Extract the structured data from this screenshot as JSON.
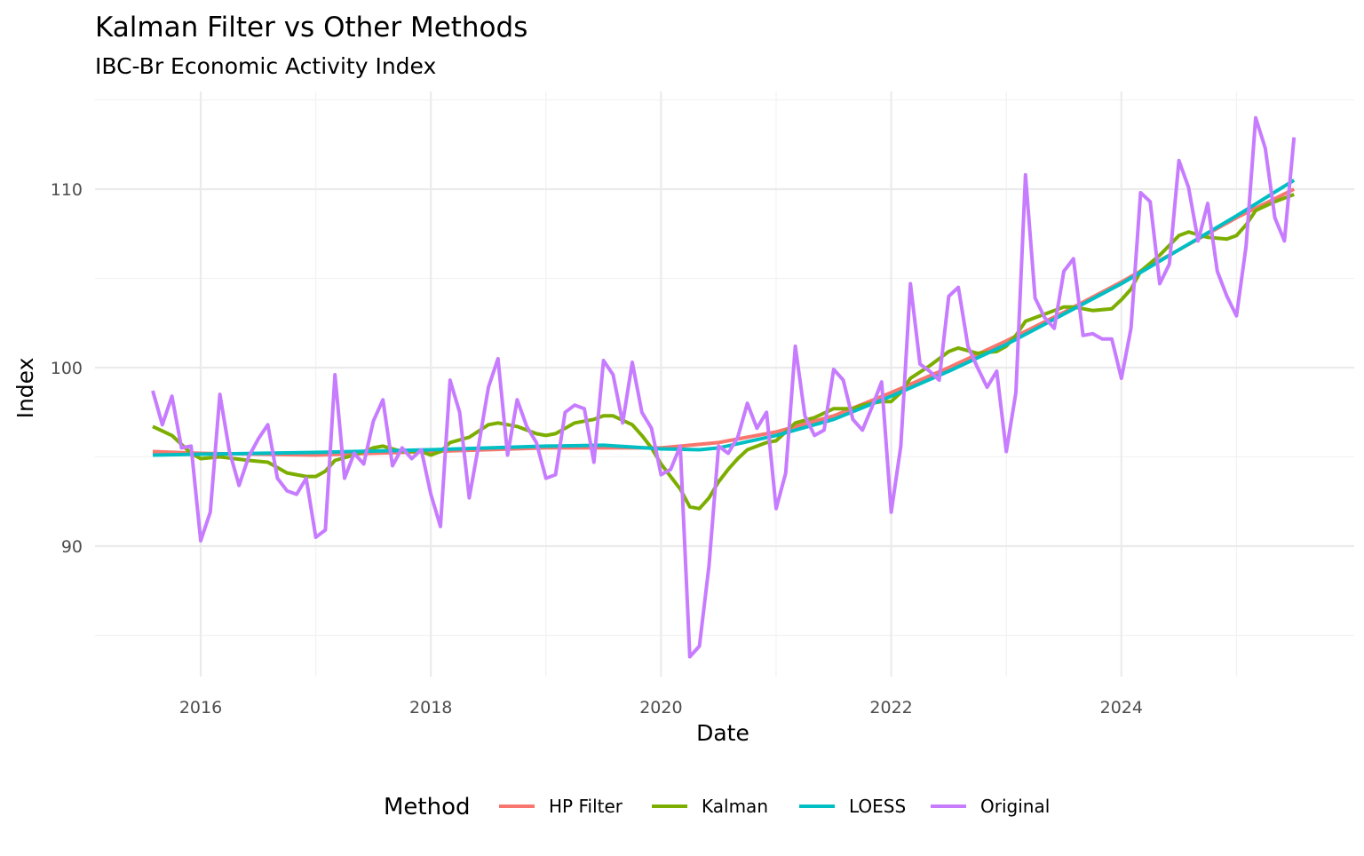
{
  "chart_data": {
    "type": "line",
    "title": "Kalman Filter vs Other Methods",
    "subtitle": "IBC-Br Economic Activity Index",
    "xlabel": "Date",
    "ylabel": "Index",
    "xlim": [
      2015.35,
      2025.8
    ],
    "ylim": [
      82.8,
      115.0
    ],
    "x_ticks": [
      "2016",
      "2018",
      "2020",
      "2022",
      "2024"
    ],
    "y_ticks": [
      "90",
      "100",
      "110"
    ],
    "grid": true,
    "legend": {
      "title": "Method",
      "position": "bottom",
      "entries": [
        "HP Filter",
        "Kalman",
        "LOESS",
        "Original"
      ]
    },
    "colors": {
      "HP Filter": "#F8766D",
      "Kalman": "#7CAE00",
      "LOESS": "#00BFC4",
      "Original": "#C77CFF"
    },
    "series": [
      {
        "name": "Original",
        "start": "2015-08",
        "frequency": "monthly",
        "values": [
          98.7,
          96.8,
          98.4,
          95.5,
          95.6,
          90.3,
          91.9,
          98.5,
          95.3,
          93.4,
          95.0,
          96.0,
          96.8,
          93.8,
          93.1,
          92.9,
          93.8,
          90.5,
          90.9,
          99.6,
          93.8,
          95.2,
          94.6,
          97.0,
          98.2,
          94.5,
          95.5,
          94.9,
          95.4,
          92.9,
          91.1,
          99.3,
          97.5,
          92.7,
          95.7,
          98.9,
          100.5,
          95.1,
          98.2,
          96.7,
          95.8,
          93.8,
          94.0,
          97.5,
          97.9,
          97.7,
          94.7,
          100.4,
          99.6,
          96.9,
          100.3,
          97.5,
          96.6,
          94.0,
          94.3,
          95.6,
          83.8,
          84.4,
          88.9,
          95.6,
          95.2,
          96.1,
          98.0,
          96.6,
          97.5,
          92.1,
          94.1,
          101.2,
          97.3,
          96.2,
          96.5,
          99.9,
          99.3,
          97.1,
          96.5,
          97.8,
          99.2,
          91.9,
          95.6,
          104.7,
          100.2,
          99.8,
          99.3,
          104.0,
          104.5,
          101.2,
          100.0,
          98.9,
          99.8,
          95.3,
          98.6,
          110.8,
          103.9,
          102.8,
          102.2,
          105.4,
          106.1,
          101.8,
          101.9,
          101.6,
          101.6,
          99.4,
          102.2,
          109.8,
          109.3,
          104.7,
          105.8,
          111.6,
          110.1,
          107.1,
          109.2,
          105.4,
          104.0,
          102.9,
          106.8,
          114.0,
          112.3,
          108.4,
          107.1,
          112.9
        ]
      },
      {
        "name": "HP Filter",
        "points": [
          [
            "2015-08",
            95.3
          ],
          [
            "2016-01",
            95.2
          ],
          [
            "2017-01",
            95.1
          ],
          [
            "2018-01",
            95.3
          ],
          [
            "2019-01",
            95.5
          ],
          [
            "2020-01",
            95.5
          ],
          [
            "2020-07",
            95.8
          ],
          [
            "2021-01",
            96.4
          ],
          [
            "2021-07",
            97.3
          ],
          [
            "2022-01",
            98.6
          ],
          [
            "2022-07",
            100.0
          ],
          [
            "2023-01",
            101.5
          ],
          [
            "2023-07",
            103.1
          ],
          [
            "2024-01",
            104.8
          ],
          [
            "2024-07",
            106.6
          ],
          [
            "2025-01",
            108.4
          ],
          [
            "2025-07",
            110.0
          ]
        ]
      },
      {
        "name": "Kalman",
        "points": [
          [
            "2015-08",
            96.7
          ],
          [
            "2015-10",
            96.2
          ],
          [
            "2015-12",
            95.2
          ],
          [
            "2016-01",
            94.9
          ],
          [
            "2016-03",
            95.0
          ],
          [
            "2016-06",
            94.8
          ],
          [
            "2016-08",
            94.7
          ],
          [
            "2016-10",
            94.1
          ],
          [
            "2016-12",
            93.9
          ],
          [
            "2017-01",
            93.9
          ],
          [
            "2017-02",
            94.2
          ],
          [
            "2017-03",
            94.8
          ],
          [
            "2017-05",
            95.1
          ],
          [
            "2017-07",
            95.5
          ],
          [
            "2017-08",
            95.6
          ],
          [
            "2017-10",
            95.3
          ],
          [
            "2017-12",
            95.3
          ],
          [
            "2018-01",
            95.1
          ],
          [
            "2018-02",
            95.3
          ],
          [
            "2018-03",
            95.8
          ],
          [
            "2018-05",
            96.1
          ],
          [
            "2018-07",
            96.8
          ],
          [
            "2018-08",
            96.9
          ],
          [
            "2018-10",
            96.7
          ],
          [
            "2018-12",
            96.3
          ],
          [
            "2019-01",
            96.2
          ],
          [
            "2019-02",
            96.3
          ],
          [
            "2019-04",
            96.9
          ],
          [
            "2019-06",
            97.1
          ],
          [
            "2019-07",
            97.3
          ],
          [
            "2019-08",
            97.3
          ],
          [
            "2019-10",
            96.8
          ],
          [
            "2019-11",
            96.2
          ],
          [
            "2019-12",
            95.5
          ],
          [
            "2020-01",
            94.6
          ],
          [
            "2020-02",
            93.9
          ],
          [
            "2020-03",
            93.2
          ],
          [
            "2020-04",
            92.2
          ],
          [
            "2020-05",
            92.1
          ],
          [
            "2020-06",
            92.7
          ],
          [
            "2020-07",
            93.6
          ],
          [
            "2020-08",
            94.3
          ],
          [
            "2020-09",
            94.9
          ],
          [
            "2020-10",
            95.4
          ],
          [
            "2020-12",
            95.8
          ],
          [
            "2021-01",
            95.9
          ],
          [
            "2021-02",
            96.4
          ],
          [
            "2021-03",
            96.9
          ],
          [
            "2021-05",
            97.2
          ],
          [
            "2021-07",
            97.7
          ],
          [
            "2021-09",
            97.7
          ],
          [
            "2021-10",
            97.9
          ],
          [
            "2021-12",
            98.1
          ],
          [
            "2022-01",
            98.1
          ],
          [
            "2022-02",
            98.6
          ],
          [
            "2022-03",
            99.4
          ],
          [
            "2022-05",
            100.1
          ],
          [
            "2022-07",
            100.9
          ],
          [
            "2022-08",
            101.1
          ],
          [
            "2022-10",
            100.8
          ],
          [
            "2022-12",
            100.9
          ],
          [
            "2023-01",
            101.2
          ],
          [
            "2023-02",
            101.8
          ],
          [
            "2023-03",
            102.6
          ],
          [
            "2023-05",
            103.0
          ],
          [
            "2023-07",
            103.4
          ],
          [
            "2023-08",
            103.4
          ],
          [
            "2023-10",
            103.2
          ],
          [
            "2023-12",
            103.3
          ],
          [
            "2024-01",
            103.8
          ],
          [
            "2024-02",
            104.4
          ],
          [
            "2024-03",
            105.4
          ],
          [
            "2024-05",
            106.3
          ],
          [
            "2024-07",
            107.4
          ],
          [
            "2024-08",
            107.6
          ],
          [
            "2024-10",
            107.3
          ],
          [
            "2024-12",
            107.2
          ],
          [
            "2025-01",
            107.4
          ],
          [
            "2025-02",
            108.0
          ],
          [
            "2025-03",
            108.8
          ],
          [
            "2025-05",
            109.3
          ],
          [
            "2025-07",
            109.7
          ]
        ]
      },
      {
        "name": "LOESS",
        "points": [
          [
            "2015-08",
            95.1
          ],
          [
            "2016-01",
            95.15
          ],
          [
            "2017-01",
            95.25
          ],
          [
            "2018-01",
            95.4
          ],
          [
            "2019-01",
            95.6
          ],
          [
            "2019-07",
            95.65
          ],
          [
            "2020-01",
            95.45
          ],
          [
            "2020-05",
            95.4
          ],
          [
            "2020-07",
            95.5
          ],
          [
            "2021-01",
            96.2
          ],
          [
            "2021-07",
            97.1
          ],
          [
            "2022-01",
            98.4
          ],
          [
            "2022-07",
            99.8
          ],
          [
            "2023-01",
            101.3
          ],
          [
            "2023-07",
            103.0
          ],
          [
            "2024-01",
            104.7
          ],
          [
            "2024-07",
            106.6
          ],
          [
            "2025-01",
            108.5
          ],
          [
            "2025-07",
            110.5
          ]
        ]
      }
    ]
  }
}
